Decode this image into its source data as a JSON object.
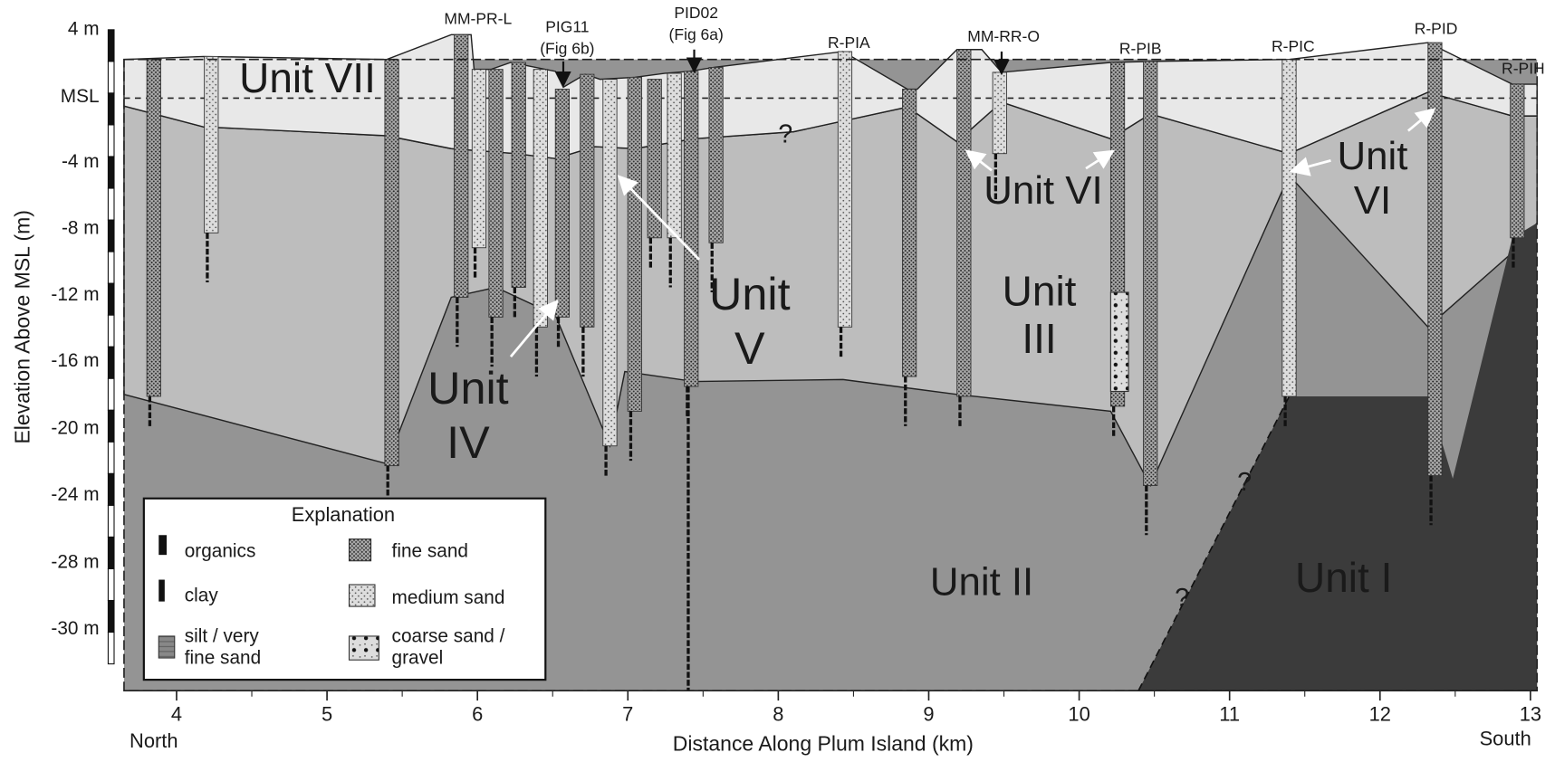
{
  "axes": {
    "y_title": "Elevation Above MSL (m)",
    "x_title": "Distance Along Plum Island (km)",
    "y_ticks": [
      "4 m",
      "MSL",
      "-4 m",
      "-8 m",
      "-12 m",
      "-16 m",
      "-20 m",
      "-24 m",
      "-28 m",
      "-30 m"
    ],
    "x_ticks": [
      "4",
      "5",
      "6",
      "7",
      "8",
      "9",
      "10",
      "11",
      "12",
      "13"
    ],
    "north": "North",
    "south": "South"
  },
  "cores": [
    {
      "lines": [
        "MM-PR-L"
      ]
    },
    {
      "lines": [
        "PIG11",
        "(Fig 6b)"
      ]
    },
    {
      "lines": [
        "PID02",
        "(Fig 6a)"
      ]
    },
    {
      "lines": [
        "R-PIA"
      ]
    },
    {
      "lines": [
        "MM-RR-O"
      ]
    },
    {
      "lines": [
        "R-PIB"
      ]
    },
    {
      "lines": [
        "R-PIC"
      ]
    },
    {
      "lines": [
        "R-PID"
      ]
    },
    {
      "lines": [
        "R-PIH"
      ]
    }
  ],
  "units": [
    {
      "lines": [
        "Unit VII"
      ]
    },
    {
      "lines": [
        "Unit",
        "V"
      ]
    },
    {
      "lines": [
        "Unit",
        "III"
      ]
    },
    {
      "lines": [
        "Unit VI"
      ]
    },
    {
      "lines": [
        "Unit",
        "VI"
      ]
    },
    {
      "lines": [
        "Unit",
        "IV"
      ]
    },
    {
      "lines": [
        "Unit II"
      ]
    },
    {
      "lines": [
        "Unit I"
      ]
    }
  ],
  "question_marks": [
    "?",
    "?",
    "?"
  ],
  "legend": {
    "title": "Explanation",
    "items": [
      {
        "lines": [
          "organics"
        ]
      },
      {
        "lines": [
          "clay"
        ]
      },
      {
        "lines": [
          "silt / very",
          "fine sand"
        ]
      },
      {
        "lines": [
          "fine sand"
        ]
      },
      {
        "lines": [
          "medium sand"
        ]
      },
      {
        "lines": [
          "coarse sand /",
          "gravel"
        ]
      }
    ]
  }
}
